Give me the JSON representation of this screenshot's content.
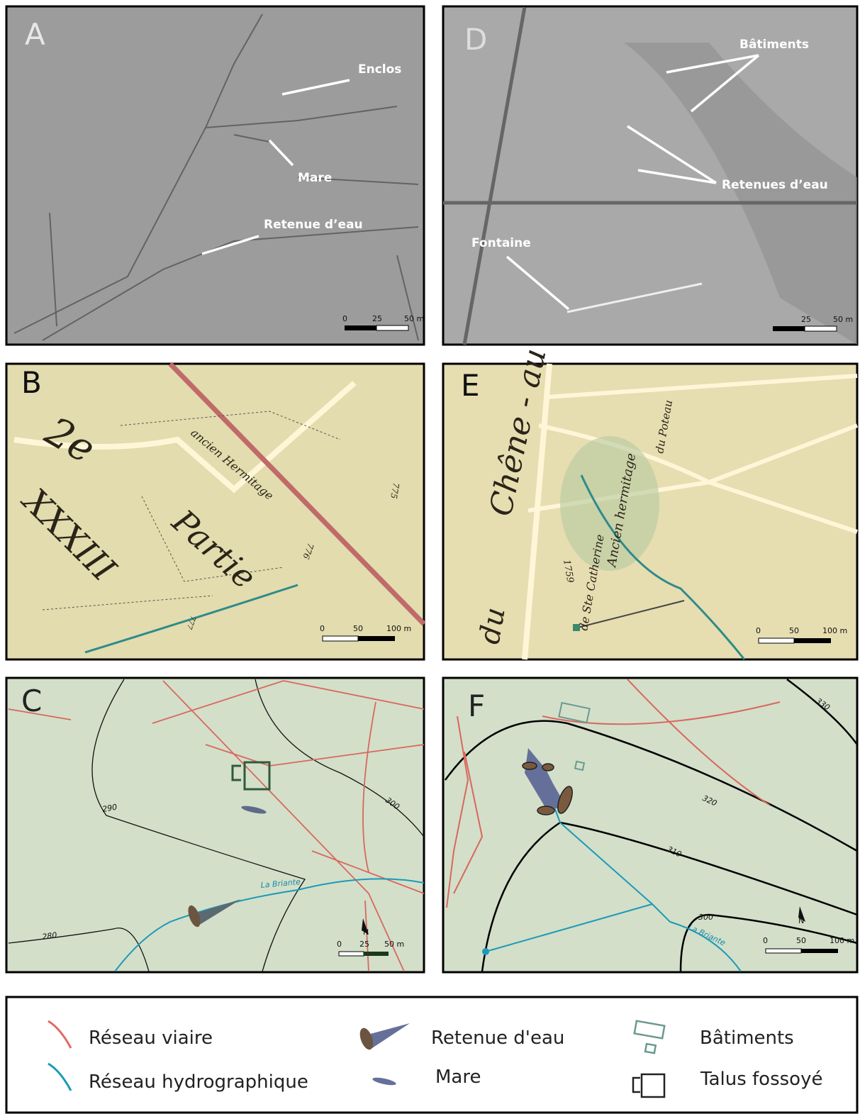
{
  "panels": {
    "A": {
      "letter": "A",
      "annotations": [
        "Enclos",
        "Mare",
        "Retenue d’eau"
      ],
      "scale": [
        "0",
        "25",
        "50 m"
      ]
    },
    "B": {
      "letter": "B",
      "map_text": [
        "2e",
        "XXXIII",
        "Partie",
        "ancien Hermitage",
        "775",
        "776",
        "777"
      ],
      "scale": [
        "0",
        "50",
        "100 m"
      ]
    },
    "C": {
      "letter": "C",
      "contours": [
        "290",
        "300",
        "280"
      ],
      "river": "La Briante",
      "scale": [
        "0",
        "25",
        "50 m"
      ],
      "north": "N"
    },
    "D": {
      "letter": "D",
      "annotations": [
        "Bâtiments",
        "Retenues d’eau",
        "Fontaine"
      ],
      "scale": [
        "25",
        "50 m"
      ]
    },
    "E": {
      "letter": "E",
      "map_text": [
        "Chêne - au",
        "du",
        "Ancien hermitage",
        "de Ste Catherine",
        "du Poteau",
        "1759"
      ],
      "scale": [
        "0",
        "50",
        "100 m"
      ]
    },
    "F": {
      "letter": "F",
      "contours": [
        "330",
        "320",
        "310",
        "300"
      ],
      "river": "La Briante",
      "scale": [
        "0",
        "50",
        "100 m"
      ],
      "north": "N"
    }
  },
  "legend": [
    "Réseau viaire",
    "Réseau hydrographique",
    "Retenue d'eau",
    "Mare",
    "Bâtiments",
    "Talus fossoyé"
  ]
}
